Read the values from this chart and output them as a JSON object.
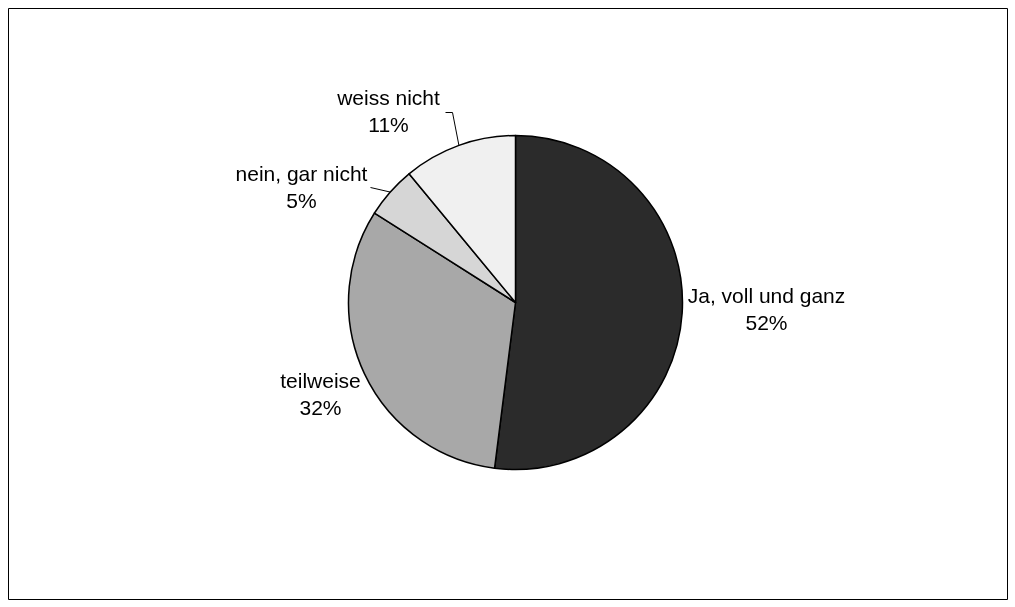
{
  "chart_data": {
    "type": "pie",
    "categories": [
      "Ja, voll und ganz",
      "teilweise",
      "nein, gar nicht",
      "weiss nicht"
    ],
    "values": [
      52,
      32,
      5,
      11
    ],
    "colors": [
      "#2b2b2b",
      "#a8a8a8",
      "#d6d6d6",
      "#f0f0f0"
    ],
    "value_labels": [
      "52%",
      "32%",
      "5%",
      "11%"
    ]
  }
}
